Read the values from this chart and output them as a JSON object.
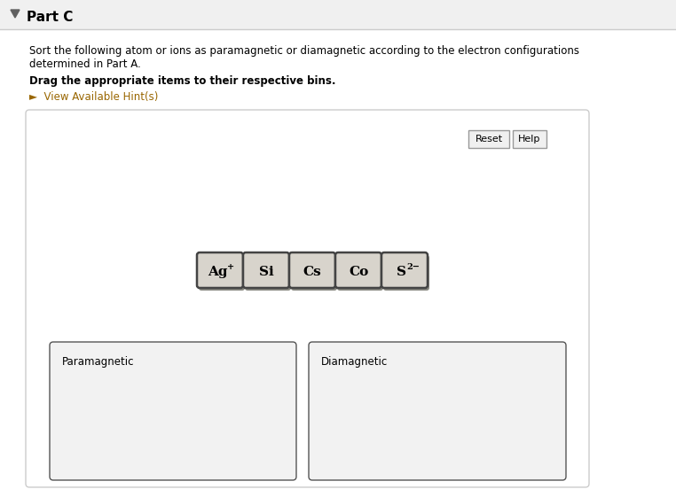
{
  "bg_color": "#ffffff",
  "title": "Part C",
  "title_fontsize": 11,
  "body_text1": "Sort the following atom or ions as paramagnetic or diamagnetic according to the electron configurations",
  "body_text2": "determined in Part A.",
  "bold_instruction": "Drag the appropriate items to their respective bins.",
  "hint_text": "►  View Available Hint(s)",
  "hint_color": "#996600",
  "items_main": [
    "Ag",
    "Si",
    "Cs",
    "Co",
    "S"
  ],
  "items_sup": [
    "+",
    "",
    "",
    "",
    "2−"
  ],
  "item_bg": "#d8d4cc",
  "item_shadow": "#888880",
  "item_border": "#444444",
  "bin_labels": [
    "Paramagnetic",
    "Diamagnetic"
  ],
  "bin_bg": "#f2f2f2",
  "bin_border": "#999999",
  "panel_bg": "#ffffff",
  "panel_border": "#cccccc",
  "reset_label": "Reset",
  "help_label": "Help",
  "button_bg": "#f0f0f0",
  "button_border": "#999999",
  "header_bg": "#f0f0f0",
  "header_border": "#cccccc",
  "top_bar_color": "#cccccc"
}
